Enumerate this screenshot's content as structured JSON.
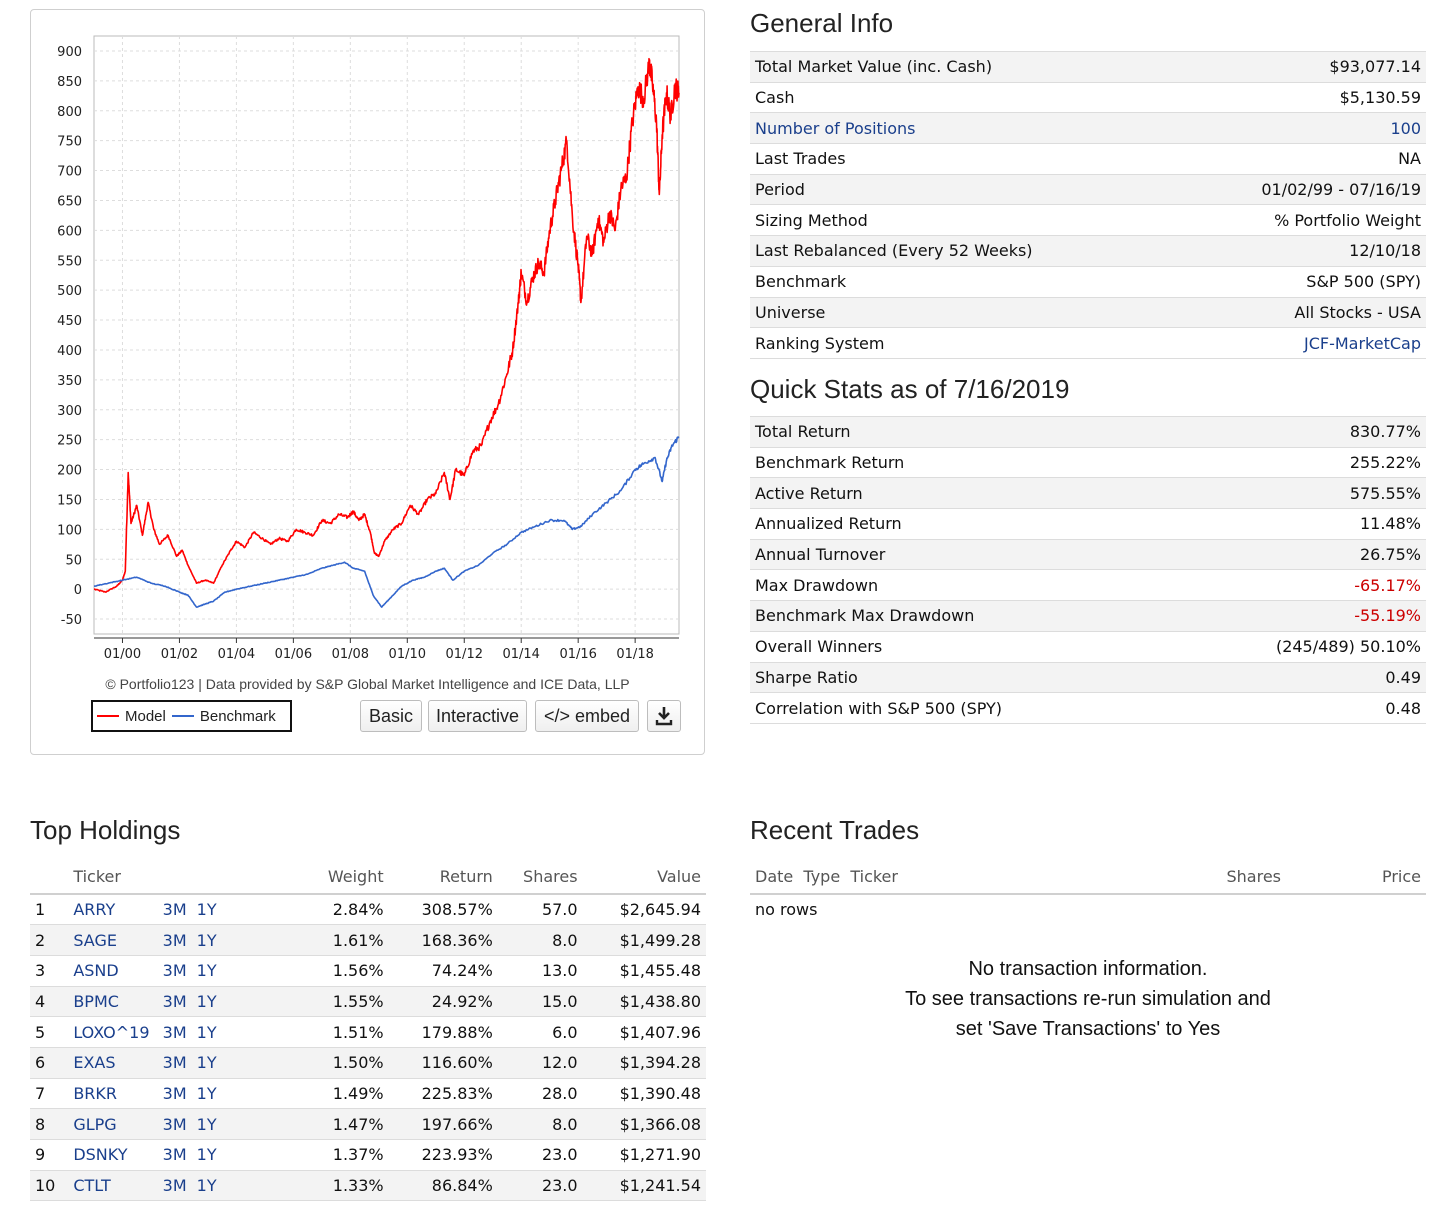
{
  "chart_panel": {
    "copyright": "© Portfolio123 | Data provided by S&P Global Market Intelligence and ICE Data, LLP",
    "legend": {
      "model": "Model",
      "benchmark": "Benchmark"
    },
    "buttons": {
      "basic": "Basic",
      "interactive": "Interactive",
      "embed": "</> embed",
      "download_icon": "download-icon"
    }
  },
  "chart_data": {
    "type": "line",
    "title": "",
    "xlabel": "",
    "ylabel": "",
    "ylim": [
      -75,
      925
    ],
    "y_ticks": [
      900,
      850,
      800,
      750,
      700,
      650,
      600,
      550,
      500,
      450,
      400,
      350,
      300,
      250,
      200,
      150,
      100,
      50,
      0,
      -50
    ],
    "x_tick_labels": [
      "01/00",
      "01/02",
      "01/04",
      "01/06",
      "01/08",
      "01/10",
      "01/12",
      "01/14",
      "01/16",
      "01/18"
    ],
    "x_range": [
      "01/02/99",
      "07/16/19"
    ],
    "grid": true,
    "series": [
      {
        "name": "Model",
        "color": "#ff0000",
        "points": [
          [
            1999.0,
            0
          ],
          [
            1999.4,
            -5
          ],
          [
            1999.8,
            5
          ],
          [
            2000.0,
            15
          ],
          [
            2000.1,
            30
          ],
          [
            2000.2,
            195
          ],
          [
            2000.3,
            110
          ],
          [
            2000.5,
            140
          ],
          [
            2000.7,
            90
          ],
          [
            2000.9,
            145
          ],
          [
            2001.1,
            100
          ],
          [
            2001.3,
            75
          ],
          [
            2001.6,
            90
          ],
          [
            2001.9,
            55
          ],
          [
            2002.1,
            65
          ],
          [
            2002.3,
            40
          ],
          [
            2002.6,
            10
          ],
          [
            2002.9,
            15
          ],
          [
            2003.2,
            10
          ],
          [
            2003.5,
            40
          ],
          [
            2003.8,
            65
          ],
          [
            2004.0,
            80
          ],
          [
            2004.3,
            70
          ],
          [
            2004.6,
            95
          ],
          [
            2004.9,
            85
          ],
          [
            2005.2,
            75
          ],
          [
            2005.5,
            85
          ],
          [
            2005.8,
            80
          ],
          [
            2006.1,
            100
          ],
          [
            2006.4,
            95
          ],
          [
            2006.7,
            90
          ],
          [
            2007.0,
            115
          ],
          [
            2007.3,
            110
          ],
          [
            2007.6,
            125
          ],
          [
            2007.9,
            120
          ],
          [
            2008.1,
            130
          ],
          [
            2008.3,
            115
          ],
          [
            2008.5,
            125
          ],
          [
            2008.7,
            95
          ],
          [
            2008.85,
            60
          ],
          [
            2009.0,
            55
          ],
          [
            2009.2,
            80
          ],
          [
            2009.5,
            100
          ],
          [
            2009.8,
            110
          ],
          [
            2010.1,
            140
          ],
          [
            2010.4,
            125
          ],
          [
            2010.7,
            150
          ],
          [
            2011.0,
            160
          ],
          [
            2011.3,
            195
          ],
          [
            2011.5,
            150
          ],
          [
            2011.7,
            200
          ],
          [
            2012.0,
            190
          ],
          [
            2012.3,
            230
          ],
          [
            2012.6,
            240
          ],
          [
            2012.9,
            280
          ],
          [
            2013.2,
            310
          ],
          [
            2013.5,
            360
          ],
          [
            2013.7,
            400
          ],
          [
            2013.9,
            480
          ],
          [
            2014.0,
            530
          ],
          [
            2014.2,
            480
          ],
          [
            2014.4,
            520
          ],
          [
            2014.6,
            545
          ],
          [
            2014.8,
            530
          ],
          [
            2015.0,
            600
          ],
          [
            2015.2,
            650
          ],
          [
            2015.4,
            700
          ],
          [
            2015.6,
            750
          ],
          [
            2015.8,
            620
          ],
          [
            2016.0,
            540
          ],
          [
            2016.1,
            480
          ],
          [
            2016.3,
            590
          ],
          [
            2016.5,
            560
          ],
          [
            2016.7,
            620
          ],
          [
            2016.9,
            580
          ],
          [
            2017.1,
            630
          ],
          [
            2017.3,
            600
          ],
          [
            2017.5,
            670
          ],
          [
            2017.7,
            690
          ],
          [
            2017.9,
            780
          ],
          [
            2018.1,
            840
          ],
          [
            2018.3,
            820
          ],
          [
            2018.5,
            880
          ],
          [
            2018.6,
            850
          ],
          [
            2018.75,
            780
          ],
          [
            2018.85,
            660
          ],
          [
            2018.95,
            760
          ],
          [
            2019.1,
            830
          ],
          [
            2019.25,
            790
          ],
          [
            2019.4,
            840
          ],
          [
            2019.54,
            830
          ]
        ]
      },
      {
        "name": "Benchmark",
        "color": "#3366cc",
        "points": [
          [
            1999.0,
            5
          ],
          [
            1999.5,
            10
          ],
          [
            2000.0,
            15
          ],
          [
            2000.5,
            20
          ],
          [
            2001.0,
            10
          ],
          [
            2001.5,
            5
          ],
          [
            2002.0,
            -5
          ],
          [
            2002.3,
            -10
          ],
          [
            2002.6,
            -30
          ],
          [
            2002.9,
            -25
          ],
          [
            2003.2,
            -20
          ],
          [
            2003.6,
            -5
          ],
          [
            2004.0,
            0
          ],
          [
            2004.5,
            5
          ],
          [
            2005.0,
            10
          ],
          [
            2005.5,
            15
          ],
          [
            2006.0,
            20
          ],
          [
            2006.5,
            25
          ],
          [
            2007.0,
            35
          ],
          [
            2007.4,
            40
          ],
          [
            2007.8,
            45
          ],
          [
            2008.1,
            35
          ],
          [
            2008.5,
            30
          ],
          [
            2008.8,
            -10
          ],
          [
            2009.1,
            -30
          ],
          [
            2009.4,
            -15
          ],
          [
            2009.8,
            5
          ],
          [
            2010.2,
            15
          ],
          [
            2010.6,
            20
          ],
          [
            2011.0,
            30
          ],
          [
            2011.3,
            35
          ],
          [
            2011.6,
            15
          ],
          [
            2012.0,
            30
          ],
          [
            2012.5,
            40
          ],
          [
            2013.0,
            60
          ],
          [
            2013.5,
            75
          ],
          [
            2014.0,
            95
          ],
          [
            2014.5,
            105
          ],
          [
            2015.0,
            115
          ],
          [
            2015.5,
            115
          ],
          [
            2015.8,
            100
          ],
          [
            2016.1,
            105
          ],
          [
            2016.5,
            125
          ],
          [
            2017.0,
            145
          ],
          [
            2017.5,
            165
          ],
          [
            2018.0,
            200
          ],
          [
            2018.3,
            210
          ],
          [
            2018.7,
            220
          ],
          [
            2018.95,
            180
          ],
          [
            2019.1,
            215
          ],
          [
            2019.3,
            240
          ],
          [
            2019.54,
            255
          ]
        ]
      }
    ]
  },
  "general_info": {
    "title": "General Info",
    "rows": [
      {
        "label": "Total Market Value (inc. Cash)",
        "value": "$93,077.14"
      },
      {
        "label": "Cash",
        "value": "$5,130.59"
      },
      {
        "label": "Number of Positions",
        "value": "100"
      },
      {
        "label": "Last Trades",
        "value": "NA"
      },
      {
        "label": "Period",
        "value": "01/02/99 - 07/16/19"
      },
      {
        "label": "Sizing Method",
        "value": "% Portfolio Weight"
      },
      {
        "label": "Last Rebalanced (Every 52 Weeks)",
        "value": "12/10/18"
      },
      {
        "label": "Benchmark",
        "value": "S&P 500 (SPY)"
      },
      {
        "label": "Universe",
        "value": "All Stocks - USA"
      },
      {
        "label": "Ranking System",
        "value": "JCF-MarketCap"
      }
    ]
  },
  "quick_stats": {
    "title": "Quick Stats as of 7/16/2019",
    "rows": [
      {
        "label": "Total Return",
        "value": "830.77%"
      },
      {
        "label": "Benchmark Return",
        "value": "255.22%"
      },
      {
        "label": "Active Return",
        "value": "575.55%"
      },
      {
        "label": "Annualized Return",
        "value": "11.48%"
      },
      {
        "label": "Annual Turnover",
        "value": "26.75%"
      },
      {
        "label": "Max Drawdown",
        "value": "-65.17%"
      },
      {
        "label": "Benchmark Max Drawdown",
        "value": "-55.19%"
      },
      {
        "label": "Overall Winners",
        "value": "(245/489) 50.10%"
      },
      {
        "label": "Sharpe Ratio",
        "value": "0.49"
      },
      {
        "label": "Correlation with S&P 500 (SPY)",
        "value": "0.48"
      }
    ],
    "negative_color": "#cc0000"
  },
  "top_holdings": {
    "title": "Top Holdings",
    "headers": {
      "ticker": "Ticker",
      "weight": "Weight",
      "return": "Return",
      "shares": "Shares",
      "value": "Value"
    },
    "link_3m": "3M",
    "link_1y": "1Y",
    "rows": [
      {
        "n": "1",
        "ticker": "ARRY",
        "weight": "2.84%",
        "return": "308.57%",
        "shares": "57.0",
        "value": "$2,645.94"
      },
      {
        "n": "2",
        "ticker": "SAGE",
        "weight": "1.61%",
        "return": "168.36%",
        "shares": "8.0",
        "value": "$1,499.28"
      },
      {
        "n": "3",
        "ticker": "ASND",
        "weight": "1.56%",
        "return": "74.24%",
        "shares": "13.0",
        "value": "$1,455.48"
      },
      {
        "n": "4",
        "ticker": "BPMC",
        "weight": "1.55%",
        "return": "24.92%",
        "shares": "15.0",
        "value": "$1,438.80"
      },
      {
        "n": "5",
        "ticker": "LOXO^19",
        "weight": "1.51%",
        "return": "179.88%",
        "shares": "6.0",
        "value": "$1,407.96"
      },
      {
        "n": "6",
        "ticker": "EXAS",
        "weight": "1.50%",
        "return": "116.60%",
        "shares": "12.0",
        "value": "$1,394.28"
      },
      {
        "n": "7",
        "ticker": "BRKR",
        "weight": "1.49%",
        "return": "225.83%",
        "shares": "28.0",
        "value": "$1,390.48"
      },
      {
        "n": "8",
        "ticker": "GLPG",
        "weight": "1.47%",
        "return": "197.66%",
        "shares": "8.0",
        "value": "$1,366.08"
      },
      {
        "n": "9",
        "ticker": "DSNKY",
        "weight": "1.37%",
        "return": "223.93%",
        "shares": "23.0",
        "value": "$1,271.90"
      },
      {
        "n": "10",
        "ticker": "CTLT",
        "weight": "1.33%",
        "return": "86.84%",
        "shares": "23.0",
        "value": "$1,241.54"
      }
    ]
  },
  "recent_trades": {
    "title": "Recent Trades",
    "headers": {
      "date_type_ticker": "Date  Type  Ticker",
      "shares": "Shares",
      "price": "Price"
    },
    "empty_row": "no rows",
    "message_lines": [
      "No transaction information.",
      "To see transactions re-run simulation and",
      "set 'Save Transactions' to Yes"
    ]
  },
  "colors": {
    "link": "#1a3f8c",
    "model_line": "#ff0000",
    "benchmark_line": "#3366cc"
  }
}
